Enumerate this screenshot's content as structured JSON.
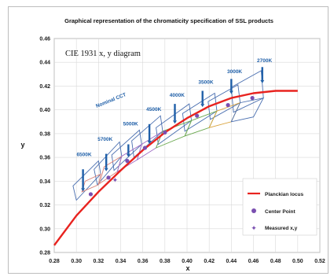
{
  "chart_data": {
    "type": "scatter",
    "title": "Graphical representation of the chromaticity specification of SSL products",
    "subtitle": "CIE 1931 x, y diagram",
    "xlabel": "x",
    "ylabel": "y",
    "xlim": [
      0.28,
      0.52
    ],
    "ylim": [
      0.28,
      0.46
    ],
    "x_ticks": [
      "0.28",
      "0.30",
      "0.32",
      "0.34",
      "0.36",
      "0.38",
      "0.40",
      "0.42",
      "0.44",
      "0.46",
      "0.48",
      "0.50",
      "0.52"
    ],
    "y_ticks": [
      "0.28",
      "0.30",
      "0.32",
      "0.34",
      "0.36",
      "0.38",
      "0.40",
      "0.42",
      "0.44",
      "0.46"
    ],
    "grid": true,
    "legend_position": "bottom-right",
    "annotation": "Nominal CCT",
    "legend": [
      {
        "label": "Planckian locus",
        "marker": "line",
        "color": "#e8231f"
      },
      {
        "label": "Center Point",
        "marker": "circle",
        "color": "#7a4fb0"
      },
      {
        "label": "Measured x,y",
        "marker": "star",
        "color": "#7a4fb0"
      }
    ],
    "planckian_locus": {
      "x": [
        0.28,
        0.3,
        0.32,
        0.34,
        0.36,
        0.38,
        0.4,
        0.42,
        0.44,
        0.46,
        0.48,
        0.5
      ],
      "y": [
        0.286,
        0.311,
        0.331,
        0.349,
        0.366,
        0.381,
        0.393,
        0.403,
        0.41,
        0.414,
        0.416,
        0.416
      ]
    },
    "quadrangles": [
      {
        "cct": "6500K",
        "color": "#d9837a",
        "x": [
          0.305,
          0.32,
          0.322,
          0.308
        ],
        "y": [
          0.331,
          0.337,
          0.346,
          0.34
        ]
      },
      {
        "cct": "5700K",
        "color": "#d9837a",
        "x": [
          0.321,
          0.337,
          0.341,
          0.325
        ],
        "y": [
          0.338,
          0.348,
          0.361,
          0.352
        ]
      },
      {
        "cct": "5000K",
        "color": "#9e6bc4",
        "x": [
          0.337,
          0.355,
          0.359,
          0.341
        ],
        "y": [
          0.348,
          0.358,
          0.371,
          0.361
        ]
      },
      {
        "cct": "4500K",
        "color": "#9e6bc4",
        "x": [
          0.355,
          0.372,
          0.378,
          0.359
        ],
        "y": [
          0.358,
          0.368,
          0.382,
          0.371
        ]
      },
      {
        "cct": "4000K",
        "color": "#6aa84f",
        "x": [
          0.372,
          0.398,
          0.404,
          0.378
        ],
        "y": [
          0.368,
          0.378,
          0.391,
          0.382
        ]
      },
      {
        "cct": "3500K",
        "color": "#6aa84f",
        "x": [
          0.398,
          0.42,
          0.427,
          0.404
        ],
        "y": [
          0.378,
          0.385,
          0.399,
          0.391
        ]
      },
      {
        "cct": "3000K",
        "color": "#d9a23a",
        "x": [
          0.42,
          0.44,
          0.448,
          0.427
        ],
        "y": [
          0.385,
          0.39,
          0.406,
          0.399
        ]
      },
      {
        "cct": "2700K",
        "color": "#4a6fb0",
        "x": [
          0.44,
          0.46,
          0.469,
          0.448
        ],
        "y": [
          0.39,
          0.394,
          0.41,
          0.406
        ]
      }
    ],
    "tolerance_boxes": [
      {
        "cct": "6500K",
        "color": "#4a6fb0",
        "x": [
          0.3,
          0.322,
          0.32,
          0.297
        ],
        "y": [
          0.324,
          0.346,
          0.357,
          0.336
        ]
      },
      {
        "cct": "5700K",
        "color": "#4a6fb0",
        "x": [
          0.319,
          0.341,
          0.339,
          0.316
        ],
        "y": [
          0.337,
          0.361,
          0.373,
          0.35
        ]
      },
      {
        "cct": "5000K",
        "color": "#4a6fb0",
        "x": [
          0.334,
          0.359,
          0.357,
          0.332
        ],
        "y": [
          0.349,
          0.371,
          0.383,
          0.362
        ]
      },
      {
        "cct": "4500K",
        "color": "#4a6fb0",
        "x": [
          0.352,
          0.378,
          0.376,
          0.35
        ],
        "y": [
          0.36,
          0.382,
          0.395,
          0.374
        ]
      },
      {
        "cct": "4000K",
        "color": "#4a6fb0",
        "x": [
          0.374,
          0.404,
          0.402,
          0.372
        ],
        "y": [
          0.371,
          0.391,
          0.405,
          0.385
        ]
      },
      {
        "cct": "3500K",
        "color": "#4a6fb0",
        "x": [
          0.398,
          0.427,
          0.425,
          0.396
        ],
        "y": [
          0.382,
          0.399,
          0.414,
          0.397
        ]
      },
      {
        "cct": "3000K",
        "color": "#4a6fb0",
        "x": [
          0.421,
          0.448,
          0.446,
          0.419
        ],
        "y": [
          0.392,
          0.406,
          0.421,
          0.407
        ]
      },
      {
        "cct": "2700K",
        "color": "#4a6fb0",
        "x": [
          0.442,
          0.469,
          0.467,
          0.44
        ],
        "y": [
          0.398,
          0.41,
          0.433,
          0.419
        ]
      }
    ],
    "cct_labels": [
      {
        "text": "6500K",
        "x": 0.307,
        "y": 0.361
      },
      {
        "text": "5700K",
        "x": 0.326,
        "y": 0.374
      },
      {
        "text": "5000K",
        "x": 0.349,
        "y": 0.387
      },
      {
        "text": "4500K",
        "x": 0.37,
        "y": 0.399
      },
      {
        "text": "4000K",
        "x": 0.391,
        "y": 0.411
      },
      {
        "text": "3500K",
        "x": 0.417,
        "y": 0.422
      },
      {
        "text": "3000K",
        "x": 0.443,
        "y": 0.431
      },
      {
        "text": "2700K",
        "x": 0.47,
        "y": 0.44
      }
    ],
    "center_points": {
      "x": [
        0.313,
        0.329,
        0.346,
        0.362,
        0.38,
        0.409,
        0.437,
        0.459
      ],
      "y": [
        0.329,
        0.343,
        0.357,
        0.368,
        0.381,
        0.395,
        0.404,
        0.41
      ]
    },
    "measured_points": {
      "x": [
        0.335
      ],
      "y": [
        0.341
      ]
    },
    "nominal_arrows": [
      {
        "x": 0.306,
        "y": [
          0.35,
          0.334
        ]
      },
      {
        "x": 0.327,
        "y": [
          0.363,
          0.351
        ]
      },
      {
        "x": 0.347,
        "y": [
          0.371,
          0.363
        ]
      },
      {
        "x": 0.366,
        "y": [
          0.388,
          0.374
        ]
      },
      {
        "x": 0.389,
        "y": [
          0.405,
          0.391
        ]
      },
      {
        "x": 0.414,
        "y": [
          0.416,
          0.405
        ]
      },
      {
        "x": 0.44,
        "y": [
          0.426,
          0.416
        ]
      },
      {
        "x": 0.468,
        "y": [
          0.436,
          0.425
        ]
      }
    ]
  }
}
